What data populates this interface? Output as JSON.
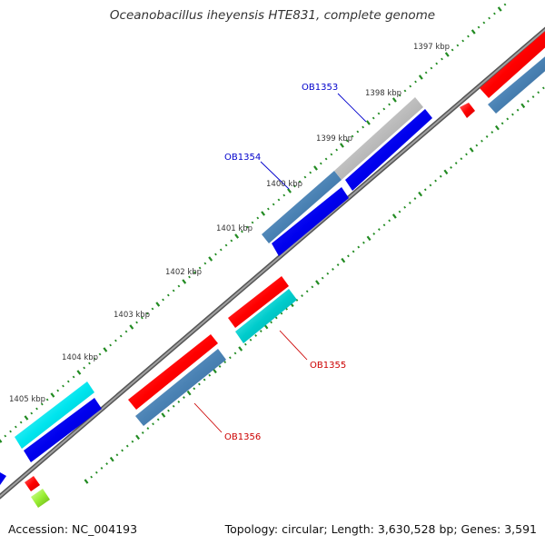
{
  "title": "Oceanobacillus iheyensis HTE831, complete genome",
  "footer": {
    "accession": "Accession: NC_004193",
    "summary": "Topology: circular; Length: 3,630,528 bp; Genes: 3,591"
  },
  "ticks": [
    "1397 kbp",
    "1398 kbp",
    "1399 kbp",
    "1400 kbp",
    "1401 kbp",
    "1402 kbp",
    "1403 kbp",
    "1404 kbp",
    "1405 kbp"
  ],
  "gene_labels": [
    {
      "name": "OB1353",
      "color": "#0000cc"
    },
    {
      "name": "OB1354",
      "color": "#0000cc"
    },
    {
      "name": "OB1355",
      "color": "#cc0000"
    },
    {
      "name": "OB1356",
      "color": "#cc0000"
    }
  ],
  "colors": {
    "backbone": "#808080",
    "tick_mark": "#228B22",
    "red": "#ff0000",
    "blue": "#0000ee",
    "steel": "#4a82b4",
    "gray": "#b8b8b8",
    "cyan": "#00cccc",
    "aqua": "#00e5ee",
    "lime": "#99ee33"
  }
}
